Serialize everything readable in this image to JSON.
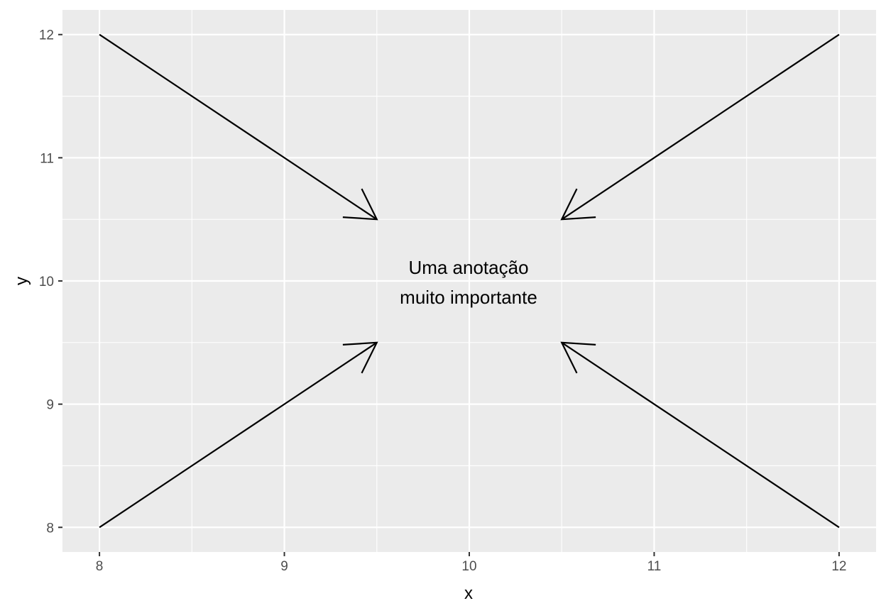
{
  "chart_data": {
    "type": "scatter",
    "title": "",
    "xlabel": "x",
    "ylabel": "y",
    "xlim": [
      7.8,
      12.2
    ],
    "ylim": [
      7.8,
      12.2
    ],
    "x_ticks": [
      8,
      9,
      10,
      11,
      12
    ],
    "y_ticks": [
      8,
      9,
      10,
      11,
      12
    ],
    "x_tick_labels": [
      "8",
      "9",
      "10",
      "11",
      "12"
    ],
    "y_tick_labels": [
      "8",
      "9",
      "10",
      "11",
      "12"
    ],
    "grid": true,
    "panel_color": "#ebebeb",
    "grid_color": "#ffffff",
    "arrow_color": "#000000",
    "arrows": [
      {
        "x": 8,
        "y": 12,
        "xend": 9.5,
        "yend": 10.5
      },
      {
        "x": 12,
        "y": 12,
        "xend": 10.5,
        "yend": 10.5
      },
      {
        "x": 8,
        "y": 8,
        "xend": 9.5,
        "yend": 9.5
      },
      {
        "x": 12,
        "y": 8,
        "xend": 10.5,
        "yend": 9.5
      }
    ],
    "annotation": {
      "x": 10,
      "y": 10,
      "lines": [
        "Uma anotação",
        "muito importante"
      ]
    }
  }
}
